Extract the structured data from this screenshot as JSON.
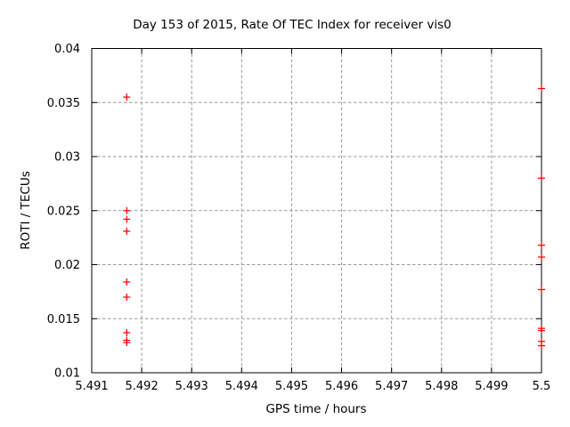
{
  "chart_data": {
    "type": "scatter",
    "title": "Day 153 of 2015, Rate Of TEC Index for receiver vis0",
    "xlabel": "GPS time / hours",
    "ylabel": "ROTI / TECUs",
    "xlim": [
      5.491,
      5.5
    ],
    "ylim": [
      0.01,
      0.04
    ],
    "xticks": [
      5.491,
      5.492,
      5.493,
      5.494,
      5.495,
      5.496,
      5.497,
      5.498,
      5.499,
      5.5
    ],
    "yticks": [
      0.01,
      0.015,
      0.02,
      0.025,
      0.03,
      0.035,
      0.04
    ],
    "grid": true,
    "legend_position": "none",
    "marker": {
      "shape": "plus",
      "size": 8
    },
    "colors": {
      "marker": "#ff0000",
      "grid": "#9a9a9a",
      "axis": "#000000",
      "background": "#ffffff"
    },
    "series": [
      {
        "name": "ROTI",
        "points": [
          [
            5.4917,
            0.0355
          ],
          [
            5.4917,
            0.025
          ],
          [
            5.4917,
            0.0242
          ],
          [
            5.4917,
            0.0231
          ],
          [
            5.4917,
            0.0184
          ],
          [
            5.4917,
            0.017
          ],
          [
            5.4917,
            0.0137
          ],
          [
            5.4917,
            0.013
          ],
          [
            5.4917,
            0.0128
          ],
          [
            5.5,
            0.0363
          ],
          [
            5.5,
            0.028
          ],
          [
            5.5,
            0.0218
          ],
          [
            5.5,
            0.0207
          ],
          [
            5.5,
            0.0177
          ],
          [
            5.5,
            0.0141
          ],
          [
            5.5,
            0.0139
          ],
          [
            5.5,
            0.0129
          ],
          [
            5.5,
            0.0125
          ]
        ]
      }
    ]
  }
}
